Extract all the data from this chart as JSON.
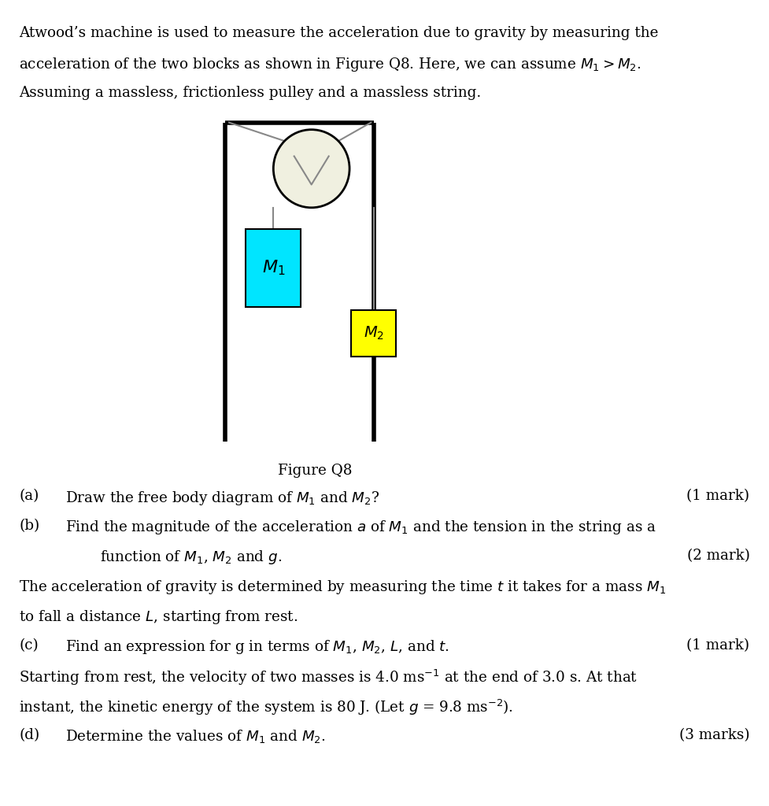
{
  "bg_color": "#ffffff",
  "text_color": "#000000",
  "pulley_color": "#f0f0e0",
  "pulley_edge_color": "#000000",
  "m1_color": "#00e5ff",
  "m2_color": "#ffff00",
  "wall_color": "#000000",
  "string_color": "#888888",
  "fontsize_body": 13.2,
  "fontsize_label": 13.2,
  "line1": "Atwood’s machine is used to measure the acceleration due to gravity by measuring the",
  "line2": "acceleration of the two blocks as shown in Figure Q8. Here, we can assume $M_1 > M_2$.",
  "line3": "Assuming a massless, frictionless pulley and a massless string.",
  "fig_caption": "Figure Q8",
  "qa_label": "(a)",
  "qa_text": "Draw the free body diagram of $M_1$ and $M_2$?",
  "qa_mark": "(1 mark)",
  "qb_label": "(b)",
  "qb_text1": "Find the magnitude of the acceleration $a$ of $M_1$ and the tension in the string as a",
  "qb_text2": "function of $M_1$, $M_2$ and $g$.",
  "qb_mark": "(2 mark)",
  "para2_line1": "The acceleration of gravity is determined by measuring the time $t$ it takes for a mass $M_1$",
  "para2_line2": "to fall a distance $L$, starting from rest.",
  "qc_label": "(c)",
  "qc_text": "Find an expression for g in terms of $M_1$, $M_2$, $L$, and $t$.",
  "qc_mark": "(1 mark)",
  "para3_line1": "Starting from rest, the velocity of two masses is 4.0 ms$^{-1}$ at the end of 3.0 s. At that",
  "para3_line2": "instant, the kinetic energy of the system is 80 J. (Let $g$ = 9.8 ms$^{-2}$).",
  "qd_label": "(d)",
  "qd_text": "Determine the values of $M_1$ and $M_2$.",
  "qd_mark": "(3 marks)"
}
